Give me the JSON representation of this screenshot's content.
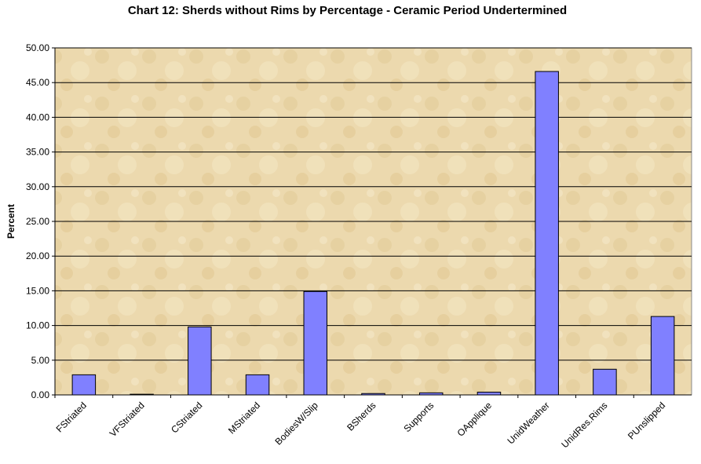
{
  "chart_data": {
    "type": "bar",
    "title": "Chart 12: Sherds without Rims by Percentage - Ceramic Period Undertermined",
    "xlabel": "",
    "ylabel": "Percent",
    "ylim": [
      0,
      50
    ],
    "ytick_step": 5,
    "ytick_labels": [
      "0.00",
      "5.00",
      "10.00",
      "15.00",
      "20.00",
      "25.00",
      "30.00",
      "35.00",
      "40.00",
      "45.00",
      "50.00"
    ],
    "grid": true,
    "legend": "none",
    "categories": [
      "FStriated",
      "VFStriated",
      "CStriated",
      "MStriated",
      "BodiesW/Slip",
      "BSherds",
      "Supports",
      "OApplique",
      "UnidWeather",
      "UnidRes.Rims",
      "PUnslipped"
    ],
    "series": [
      {
        "values": [
          2.9,
          0.1,
          9.8,
          2.9,
          14.9,
          0.2,
          0.3,
          0.4,
          46.6,
          3.7,
          11.3
        ]
      }
    ],
    "colors": {
      "bar": "#8080ff",
      "bar_stroke": "#000000",
      "plot_bg": "#ecd9ae",
      "grid": "#000000"
    }
  }
}
